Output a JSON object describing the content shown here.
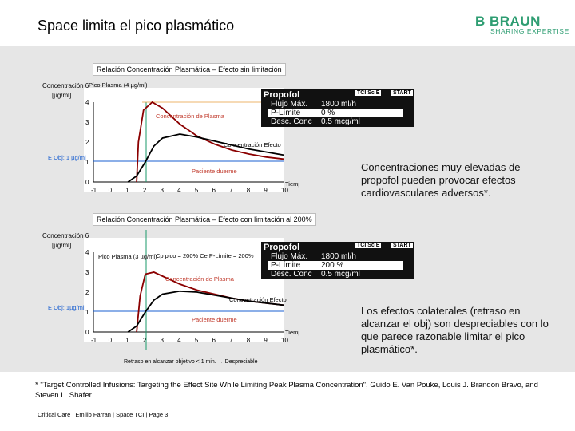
{
  "header": {
    "title": "Space limita el pico plasmático",
    "logo_brand": "B BRAUN",
    "logo_tagline": "SHARING EXPERTISE"
  },
  "colors": {
    "accent": "#2e9d72",
    "plasma_label": "#c0392b",
    "curve_effect": "#000000",
    "curve_plasma": "#8b0000"
  },
  "chart_data": [
    {
      "type": "line",
      "title": "Relación Concentración Plasmática – Efecto sin limitación",
      "ylabel": "Concentración 6 [µg/ml]",
      "xlabel": "Tiempo [min]",
      "x_ticks": [
        "-1",
        "0",
        "1",
        "2",
        "3",
        "4",
        "5",
        "6",
        "7",
        "8",
        "9",
        "10"
      ],
      "y_ticks": [
        "0",
        "1",
        "2",
        "3",
        "4"
      ],
      "annotations": {
        "peak": "Pico Plasma (4 µg/ml)",
        "plasma": "Concentración de Plasma",
        "effect": "Concentración Efecto",
        "target": "E Obj: 1 µg/ml",
        "sleep": "Paciente duerme"
      },
      "series": [
        {
          "name": "Concentración de Plasma",
          "x": [
            1.5,
            1.6,
            1.9,
            2.4,
            3.0,
            4.0,
            5.0,
            6.0,
            7.0,
            8.0,
            9.0,
            10.0
          ],
          "y": [
            0.0,
            2.0,
            3.6,
            4.0,
            3.7,
            2.9,
            2.3,
            1.9,
            1.6,
            1.4,
            1.25,
            1.15
          ]
        },
        {
          "name": "Concentración Efecto",
          "x": [
            1.0,
            1.5,
            2.0,
            2.5,
            3.0,
            4.0,
            5.0,
            6.0,
            7.0,
            8.0,
            9.0,
            10.0
          ],
          "y": [
            0.0,
            0.3,
            1.0,
            1.8,
            2.2,
            2.4,
            2.25,
            2.05,
            1.85,
            1.65,
            1.5,
            1.35
          ]
        }
      ],
      "display": {
        "title": "Propofol",
        "tag": "TCI Sc E",
        "start": "START",
        "rows": [
          {
            "label": "Flujo Máx.",
            "value": "1800 ml/h"
          },
          {
            "label": "P-Límite",
            "value": "0 %"
          },
          {
            "label": "Desc. Conc",
            "value": "0.5 mcg/ml"
          }
        ]
      },
      "side_text": "Concentraciones muy elevadas de propofol pueden provocar efectos cardiovasculares adversos*."
    },
    {
      "type": "line",
      "title": "Relación Concentración Plasmática – Efecto con limitación al 200%",
      "ylabel": "Concentración 6 [µg/ml]",
      "xlabel": "Tiempo [min]",
      "x_ticks": [
        "-1",
        "0",
        "1",
        "2",
        "3",
        "4",
        "5",
        "6",
        "7",
        "8",
        "9",
        "10"
      ],
      "y_ticks": [
        "0",
        "1",
        "2",
        "3",
        "4"
      ],
      "annotations": {
        "peak": "Pico Plasma (3 µg/ml)",
        "cp": "Cp pico = 200% Ce P-Límite = 200%",
        "plasma": "Concentración de Plasma",
        "effect": "Concentración Efecto",
        "target": "E Obj: 1µg/ml",
        "sleep": "Paciente duerme",
        "delay": "Retraso en alcanzar objetivo < 1 min. → Despreciable"
      },
      "series": [
        {
          "name": "Concentración de Plasma",
          "x": [
            1.5,
            1.7,
            2.0,
            2.5,
            3.0,
            4.0,
            5.0,
            6.0,
            7.0,
            8.0,
            9.0,
            10.0
          ],
          "y": [
            0.0,
            1.8,
            2.9,
            3.0,
            2.8,
            2.4,
            2.1,
            1.9,
            1.7,
            1.55,
            1.45,
            1.35
          ]
        },
        {
          "name": "Concentración Efecto",
          "x": [
            1.0,
            1.5,
            2.0,
            2.5,
            3.0,
            4.0,
            5.0,
            6.0,
            7.0,
            8.0,
            9.0,
            10.0
          ],
          "y": [
            0.0,
            0.3,
            1.0,
            1.6,
            1.9,
            2.05,
            2.0,
            1.85,
            1.7,
            1.55,
            1.45,
            1.35
          ]
        }
      ],
      "display": {
        "title": "Propofol",
        "tag": "TCI Sc E",
        "start": "START",
        "rows": [
          {
            "label": "Flujo Máx.",
            "value": "1800 ml/h"
          },
          {
            "label": "P-Límite",
            "value": "200 %"
          },
          {
            "label": "Desc. Conc",
            "value": "0.5 mcg/ml"
          }
        ]
      },
      "side_text": "Los efectos colaterales (retraso en alcanzar el obj) son despreciables con lo que parece razonable limitar el pico plasmático*."
    }
  ],
  "footnote": "* \"Target Controlled Infusions: Targeting the Effect Site While Limiting Peak Plasma Concentration\", Guido E. Van Pouke, Louis J. Brandon Bravo, and Steven L. Shafer.",
  "footer": "Critical Care | Emilio Farran | Space TCI | Page 3"
}
